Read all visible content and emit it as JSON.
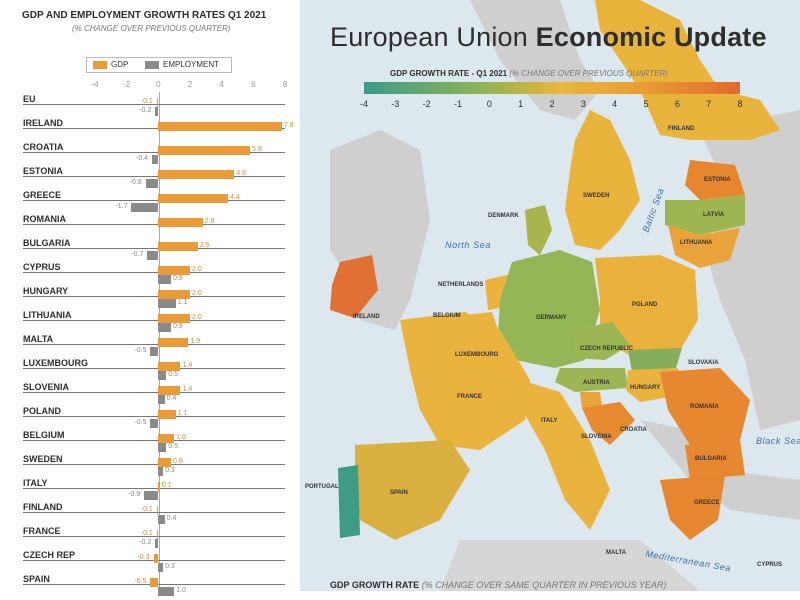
{
  "map": {
    "title_light": "European Union",
    "title_bold": "Economic Update",
    "legend_title": "GDP GROWTH RATE - Q1 2021",
    "legend_note": "(% CHANGE OVER PREVIOUS QUARTER)",
    "scale": [
      "-4",
      "-3",
      "-2",
      "-1",
      "0",
      "1",
      "2",
      "3",
      "4",
      "5",
      "6",
      "7",
      "8"
    ],
    "countries": [
      "FINLAND",
      "ESTONIA",
      "SWEDEN",
      "LATVIA",
      "DENMARK",
      "LITHUANIA",
      "NETHERLANDS",
      "IRELAND",
      "BELGIUM",
      "POLAND",
      "GERMANY",
      "LUXEMBOURG",
      "CZECH REPUBLIC",
      "SLOVAKIA",
      "AUSTRIA",
      "HUNGARY",
      "FRANCE",
      "ROMANIA",
      "ITALY",
      "SLOVENIA",
      "CROATIA",
      "BULGARIA",
      "PORTUGAL",
      "SPAIN",
      "GREECE",
      "MALTA",
      "CYPRUS"
    ],
    "seas": [
      "North Sea",
      "Baltic Sea",
      "Black Sea",
      "Mediterranean Sea"
    ],
    "footer_title": "GDP GROWTH RATE",
    "footer_note": "(% CHANGE OVER SAME QUARTER IN PREVIOUS YEAR)",
    "colors": {
      "sea": "#dde7ee",
      "land_non_eu": "#cfcfcf",
      "low": "#3a9a8a",
      "mid": "#e7b63a",
      "high": "#e06a2e"
    }
  },
  "panel": {
    "title_a": "GDP AND",
    "title_b": "EMPLOYMENT",
    "title_c": "GROWTH RATES Q1 2021",
    "subtitle": "(% CHANGE OVER PREVIOUS QUARTER)",
    "legend_gdp": "GDP",
    "legend_emp": "EMPLOYMENT",
    "axis": [
      "-4",
      "-2",
      "0",
      "2",
      "4",
      "6",
      "8"
    ]
  },
  "chart_data": {
    "type": "bar",
    "title": "GDP AND EMPLOYMENT GROWTH RATES Q1 2021",
    "subtitle": "(% CHANGE OVER PREVIOUS QUARTER)",
    "orientation": "horizontal",
    "xlim": [
      -4,
      8
    ],
    "categories": [
      "EU",
      "IRELAND",
      "CROATIA",
      "ESTONIA",
      "GREECE",
      "ROMANIA",
      "BULGARIA",
      "CYPRUS",
      "HUNGARY",
      "LITHUANIA",
      "MALTA",
      "LUXEMBOURG",
      "SLOVENIA",
      "POLAND",
      "BELGIUM",
      "SWEDEN",
      "ITALY",
      "FINLAND",
      "FRANCE",
      "CZECH REP",
      "SPAIN"
    ],
    "series": [
      {
        "name": "GDP",
        "values": [
          -0.1,
          7.8,
          5.8,
          4.8,
          4.4,
          2.8,
          2.5,
          2.0,
          2.0,
          2.0,
          1.9,
          1.4,
          1.4,
          1.1,
          1.0,
          0.8,
          0.1,
          -0.1,
          -0.1,
          -0.3,
          -0.5
        ]
      },
      {
        "name": "EMPLOYMENT",
        "values": [
          -0.2,
          null,
          -0.4,
          -0.8,
          -1.7,
          null,
          -0.7,
          0.8,
          1.1,
          0.8,
          -0.5,
          0.5,
          0.4,
          -0.5,
          0.5,
          0.3,
          -0.9,
          0.4,
          -0.2,
          0.3,
          1.0
        ]
      }
    ]
  }
}
